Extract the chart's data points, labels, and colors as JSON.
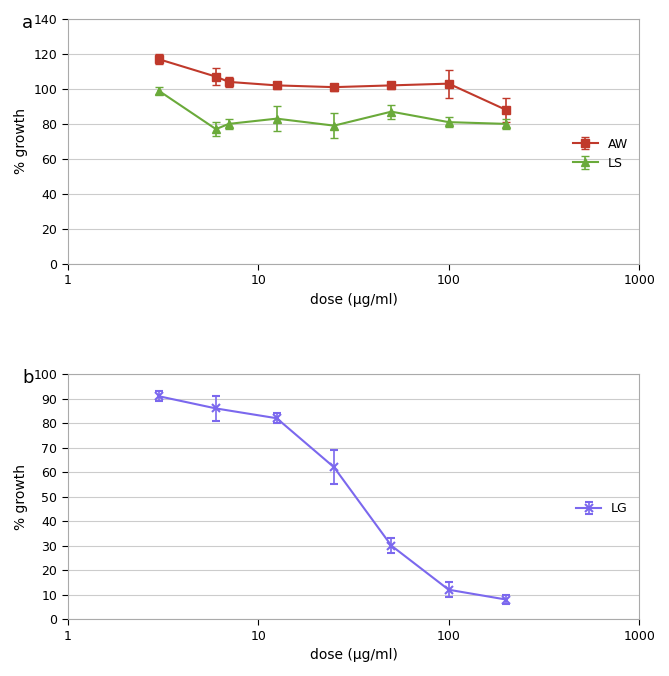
{
  "panel_a": {
    "AW": {
      "x": [
        3,
        6,
        7,
        12.5,
        25,
        50,
        100,
        200
      ],
      "y": [
        117,
        107,
        104,
        102,
        101,
        102,
        103,
        88
      ],
      "yerr": [
        3,
        5,
        3,
        2,
        2,
        2,
        8,
        7
      ],
      "color": "#c0392b",
      "marker": "s",
      "label": "AW"
    },
    "LS": {
      "x": [
        3,
        6,
        7,
        12.5,
        25,
        50,
        100,
        200
      ],
      "y": [
        99,
        77,
        80,
        83,
        79,
        87,
        81,
        80
      ],
      "yerr": [
        2,
        4,
        3,
        7,
        7,
        4,
        3,
        3
      ],
      "color": "#6aaa3a",
      "marker": "^",
      "label": "LS"
    },
    "ylim": [
      0,
      140
    ],
    "yticks": [
      0,
      20,
      40,
      60,
      80,
      100,
      120,
      140
    ],
    "ylabel": "% growth",
    "xlabel": "dose (μg/ml)",
    "panel_label": "a"
  },
  "panel_b": {
    "LG": {
      "x_vals": [
        3,
        6,
        12.5,
        25,
        50,
        100,
        200
      ],
      "y": [
        91,
        86,
        82,
        62,
        30,
        12,
        8
      ],
      "yerr": [
        2,
        5,
        2,
        7,
        3,
        3,
        2
      ],
      "color": "#7b68ee",
      "marker": "x",
      "label": "LG"
    },
    "ylim": [
      0,
      100
    ],
    "yticks": [
      0,
      10,
      20,
      30,
      40,
      50,
      60,
      70,
      80,
      90,
      100
    ],
    "ylabel": "% growth",
    "xlabel": "dose (μg/ml)",
    "panel_label": "b"
  },
  "xlim": [
    1,
    1000
  ],
  "xticks": [
    1,
    10,
    100,
    1000
  ],
  "background_color": "#ffffff",
  "grid_color": "#cccccc"
}
